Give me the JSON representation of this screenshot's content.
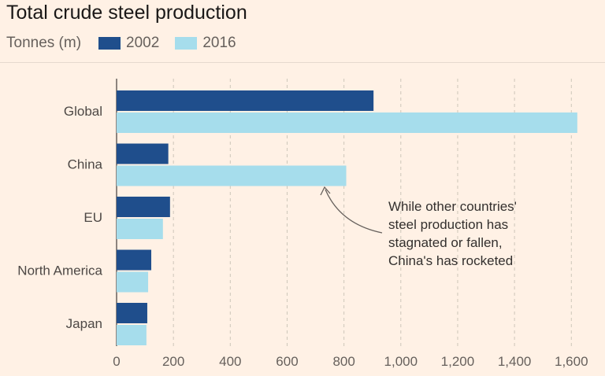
{
  "chart_data": {
    "type": "bar",
    "orientation": "horizontal",
    "title": "Total crude steel production",
    "units_label": "Tonnes (m)",
    "categories": [
      "Global",
      "China",
      "EU",
      "North America",
      "Japan"
    ],
    "series": [
      {
        "name": "2002",
        "color": "#1f4e8c",
        "values": [
          904,
          182,
          188,
          122,
          108
        ]
      },
      {
        "name": "2016",
        "color": "#a6ddec",
        "values": [
          1621,
          808,
          163,
          111,
          105
        ]
      }
    ],
    "xlim": [
      0,
      1650
    ],
    "xticks": [
      0,
      200,
      400,
      600,
      800,
      1000,
      1200,
      1400,
      1600
    ],
    "xtick_labels": [
      "0",
      "200",
      "400",
      "600",
      "800",
      "1,000",
      "1,200",
      "1,400",
      "1,600"
    ],
    "grid": true,
    "legend_position": "top-left",
    "annotation": {
      "lines": [
        "While other countries'",
        "steel production has",
        "stagnated or fallen,",
        "China's has rocketed"
      ],
      "target_category": "China",
      "target_series": "2016"
    }
  }
}
